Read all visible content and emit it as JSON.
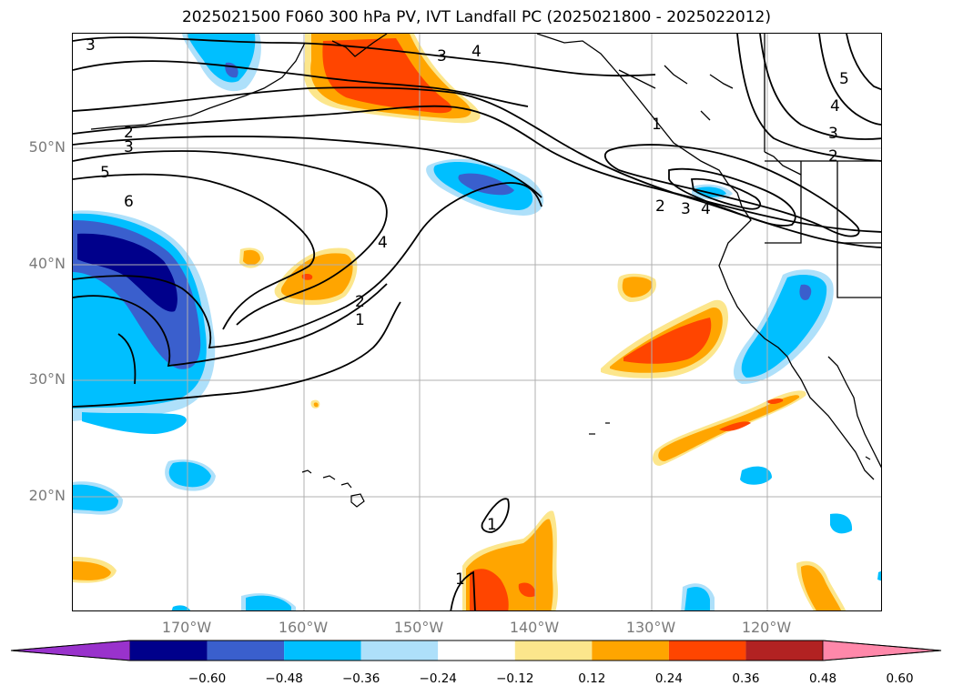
{
  "title": "2025021500 F060 300 hPa PV, IVT Landfall PC (2025021800 - 2025022012)",
  "map": {
    "projection": "equirectangular",
    "lat_labels": [
      "50°N",
      "40°N",
      "30°N",
      "20°N"
    ],
    "lon_labels": [
      "170°W",
      "160°W",
      "150°W",
      "140°W",
      "130°W",
      "120°W"
    ],
    "gridlines": true,
    "contour_labels": [
      "3",
      "4",
      "3",
      "2",
      "3",
      "5",
      "6",
      "4",
      "2",
      "1",
      "2",
      "3",
      "4",
      "5",
      "4",
      "3",
      "2",
      "1",
      "1",
      "1"
    ]
  },
  "colorbar": {
    "ticks": [
      "−0.60",
      "−0.48",
      "−0.36",
      "−0.24",
      "−0.12",
      "0.12",
      "0.24",
      "0.36",
      "0.48",
      "0.60"
    ],
    "colors": [
      "#9932cc",
      "#00008b",
      "#3a5fcd",
      "#00bfff",
      "#aee0fa",
      "#ffffff",
      "#fce68c",
      "#ffa500",
      "#ff4500",
      "#b22222",
      "#ff88aa"
    ],
    "extend": "both"
  },
  "colors": {
    "positive_light": "#fce68c",
    "positive_mid": "#ffa500",
    "positive_strong": "#ff4500",
    "positive_max": "#b22222",
    "negative_light": "#aee0fa",
    "negative_mid": "#00bfff",
    "negative_strong": "#3a5fcd",
    "negative_max": "#00008b"
  }
}
